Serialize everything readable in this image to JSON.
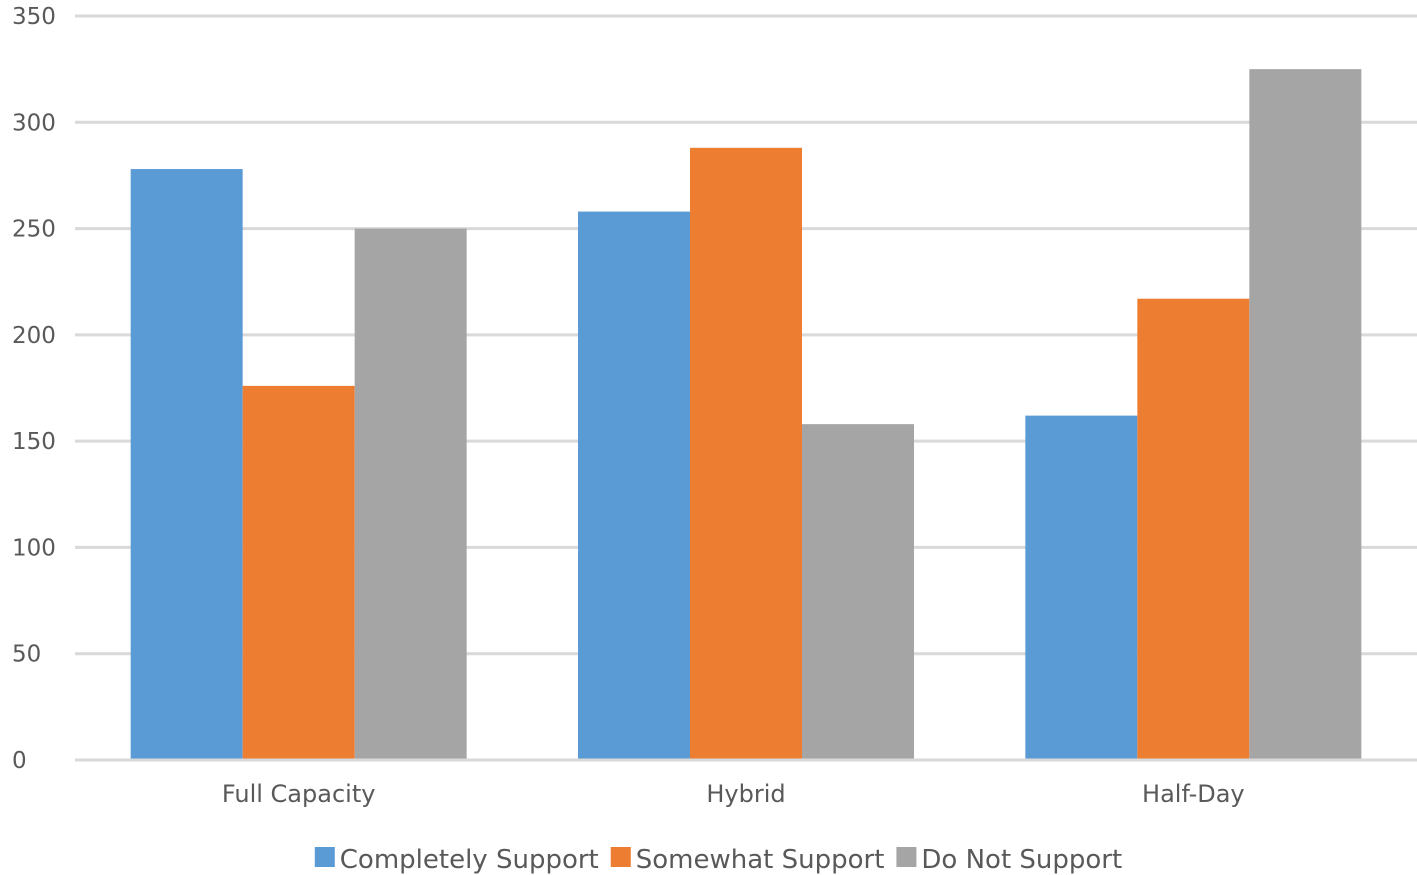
{
  "chart_data": {
    "type": "bar",
    "categories": [
      "Full Capacity",
      "Hybrid",
      "Half-Day"
    ],
    "series": [
      {
        "name": "Completely Support",
        "color": "#5B9BD5",
        "values": [
          278,
          258,
          162
        ]
      },
      {
        "name": "Somewhat Support",
        "color": "#ED7D31",
        "values": [
          176,
          288,
          217
        ]
      },
      {
        "name": "Do Not Support",
        "color": "#A5A5A5",
        "values": [
          250,
          158,
          325
        ]
      }
    ],
    "ylim": [
      0,
      350
    ],
    "yticks": [
      0,
      50,
      100,
      150,
      200,
      250,
      300,
      350
    ],
    "grid": true,
    "legend": "bottom"
  }
}
